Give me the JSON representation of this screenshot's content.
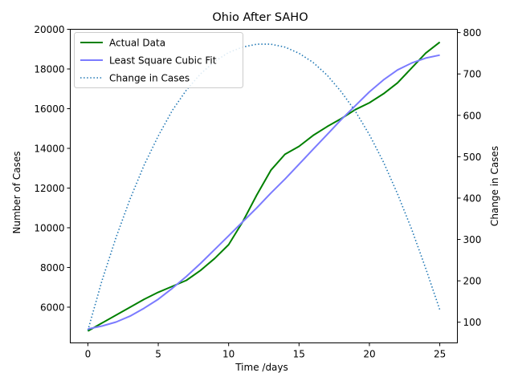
{
  "chart_data": {
    "type": "line",
    "title": "Ohio After SAHO",
    "xlabel": "Time /days",
    "ylabel": "Number of Cases",
    "y2label": "Change in Cases",
    "xlim": [
      -1.25,
      26.25
    ],
    "ylim": [
      4200,
      20000
    ],
    "y2lim": [
      50,
      808
    ],
    "xticks": [
      0,
      5,
      10,
      15,
      20,
      25
    ],
    "yticks": [
      6000,
      8000,
      10000,
      12000,
      14000,
      16000,
      18000,
      20000
    ],
    "y2ticks": [
      100,
      200,
      300,
      400,
      500,
      600,
      700,
      800
    ],
    "grid": false,
    "legend_position": "top-left",
    "x": [
      0,
      1,
      2,
      3,
      4,
      5,
      6,
      7,
      8,
      9,
      10,
      11,
      12,
      13,
      14,
      15,
      16,
      17,
      18,
      19,
      20,
      21,
      22,
      23,
      24,
      25
    ],
    "series": [
      {
        "name": "Actual Data",
        "axis": "left",
        "color": "#008000",
        "style": "solid",
        "values": [
          4800,
          5200,
          5600,
          6000,
          6400,
          6750,
          7050,
          7350,
          7850,
          8450,
          9150,
          10300,
          11650,
          12900,
          13700,
          14100,
          14650,
          15100,
          15500,
          15950,
          16300,
          16750,
          17300,
          18050,
          18800,
          19350
        ]
      },
      {
        "name": "Least Square Cubic Fit",
        "axis": "left",
        "color": "#7b7bff",
        "style": "solid",
        "values": [
          4900,
          5050,
          5250,
          5550,
          5950,
          6400,
          6950,
          7550,
          8200,
          8900,
          9600,
          10300,
          11000,
          11750,
          12450,
          13200,
          13950,
          14700,
          15450,
          16150,
          16850,
          17450,
          17950,
          18300,
          18550,
          18700
        ]
      },
      {
        "name": "Change in Cases",
        "axis": "right",
        "color": "#1f77b4",
        "style": "dotted",
        "values": [
          80,
          200,
          305,
          398,
          480,
          550,
          612,
          661,
          700,
          730,
          752,
          765,
          772,
          772,
          765,
          750,
          728,
          697,
          657,
          610,
          553,
          487,
          410,
          325,
          230,
          130
        ]
      }
    ]
  }
}
